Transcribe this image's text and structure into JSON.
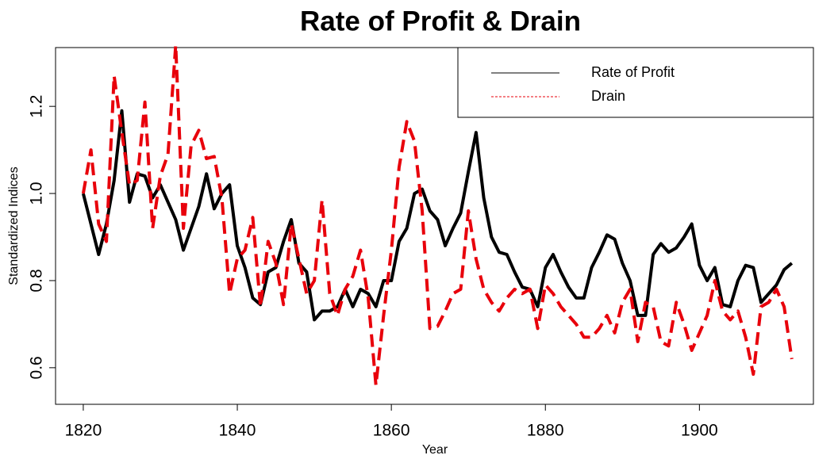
{
  "chart_data": {
    "type": "line",
    "title": "Rate of Profit & Drain",
    "x_label": "Year",
    "y_label": "Standardized Indices",
    "x": [
      1820,
      1821,
      1822,
      1823,
      1824,
      1825,
      1826,
      1827,
      1828,
      1829,
      1830,
      1831,
      1832,
      1833,
      1834,
      1835,
      1836,
      1837,
      1838,
      1839,
      1840,
      1841,
      1842,
      1843,
      1844,
      1845,
      1846,
      1847,
      1848,
      1849,
      1850,
      1851,
      1852,
      1853,
      1854,
      1855,
      1856,
      1857,
      1858,
      1859,
      1860,
      1861,
      1862,
      1863,
      1864,
      1865,
      1866,
      1867,
      1868,
      1869,
      1870,
      1871,
      1872,
      1873,
      1874,
      1875,
      1876,
      1877,
      1878,
      1879,
      1880,
      1881,
      1882,
      1883,
      1884,
      1885,
      1886,
      1887,
      1888,
      1889,
      1890,
      1891,
      1892,
      1893,
      1894,
      1895,
      1896,
      1897,
      1898,
      1899,
      1900,
      1901,
      1902,
      1903,
      1904,
      1905,
      1906,
      1907,
      1908,
      1909,
      1910,
      1911,
      1912
    ],
    "series": [
      {
        "name": "Rate of Profit",
        "color": "#000000",
        "linestyle": "solid",
        "values": [
          1.0,
          0.93,
          0.86,
          0.93,
          1.03,
          1.19,
          0.98,
          1.045,
          1.04,
          0.99,
          1.02,
          0.98,
          0.94,
          0.87,
          0.92,
          0.97,
          1.045,
          0.965,
          1.0,
          1.02,
          0.88,
          0.83,
          0.76,
          0.745,
          0.82,
          0.83,
          0.89,
          0.94,
          0.84,
          0.82,
          0.71,
          0.73,
          0.73,
          0.74,
          0.78,
          0.74,
          0.78,
          0.77,
          0.74,
          0.8,
          0.8,
          0.89,
          0.92,
          1.0,
          1.01,
          0.96,
          0.94,
          0.88,
          0.92,
          0.955,
          1.05,
          1.14,
          0.99,
          0.9,
          0.865,
          0.86,
          0.82,
          0.785,
          0.78,
          0.74,
          0.83,
          0.86,
          0.82,
          0.785,
          0.76,
          0.76,
          0.83,
          0.865,
          0.905,
          0.895,
          0.84,
          0.8,
          0.72,
          0.72,
          0.86,
          0.885,
          0.865,
          0.875,
          0.9,
          0.93,
          0.835,
          0.8,
          0.83,
          0.745,
          0.74,
          0.8,
          0.835,
          0.83,
          0.75,
          0.77,
          0.79,
          0.825,
          0.84
        ]
      },
      {
        "name": "Drain",
        "color": "#e8000b",
        "linestyle": "dashed",
        "values": [
          1.0,
          1.1,
          0.93,
          0.89,
          1.27,
          1.14,
          1.02,
          1.03,
          1.21,
          0.92,
          1.04,
          1.09,
          1.34,
          0.92,
          1.11,
          1.145,
          1.08,
          1.085,
          0.99,
          0.77,
          0.85,
          0.87,
          0.945,
          0.74,
          0.89,
          0.84,
          0.745,
          0.93,
          0.85,
          0.77,
          0.8,
          0.985,
          0.77,
          0.72,
          0.78,
          0.81,
          0.87,
          0.76,
          0.56,
          0.72,
          0.87,
          1.06,
          1.165,
          1.12,
          0.96,
          0.69,
          0.695,
          0.73,
          0.77,
          0.78,
          0.96,
          0.85,
          0.78,
          0.75,
          0.73,
          0.76,
          0.78,
          0.77,
          0.78,
          0.69,
          0.79,
          0.77,
          0.74,
          0.72,
          0.7,
          0.67,
          0.67,
          0.69,
          0.72,
          0.68,
          0.75,
          0.78,
          0.66,
          0.75,
          0.74,
          0.66,
          0.65,
          0.75,
          0.7,
          0.64,
          0.68,
          0.72,
          0.8,
          0.73,
          0.71,
          0.73,
          0.67,
          0.585,
          0.74,
          0.75,
          0.78,
          0.74,
          0.62
        ]
      }
    ],
    "xlim": [
      1816.4,
      1914.8
    ],
    "ylim": [
      0.516,
      1.335
    ],
    "xticks": [
      1820,
      1840,
      1860,
      1880,
      1900
    ],
    "yticks": [
      0.6,
      0.8,
      {
        "value": 1,
        "label": "1.0"
      },
      1.2
    ],
    "legend": "top-right"
  }
}
